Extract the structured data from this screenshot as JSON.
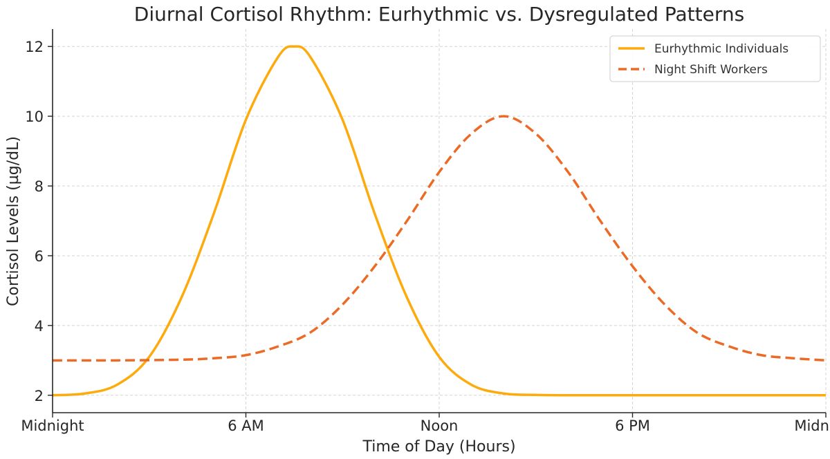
{
  "chart_data": {
    "type": "line",
    "title": "Diurnal Cortisol Rhythm: Eurhythmic vs. Dysregulated Patterns",
    "xlabel": "Time of Day (Hours)",
    "ylabel": "Cortisol Levels (µg/dL)",
    "xlim": [
      0,
      24
    ],
    "ylim": [
      1.5,
      12.5
    ],
    "x_ticks": [
      0,
      6,
      12,
      18,
      24
    ],
    "x_tick_labels": [
      "Midnight",
      "6 AM",
      "Noon",
      "6 PM",
      "Midnight"
    ],
    "y_ticks": [
      2,
      4,
      6,
      8,
      10,
      12
    ],
    "y_tick_labels": [
      "2",
      "4",
      "6",
      "8",
      "10",
      "12"
    ],
    "grid": true,
    "legend_position": "top-right",
    "series": [
      {
        "name": "Eurhythmic Individuals",
        "color": "#FDAA0C",
        "style": "solid",
        "x": [
          0,
          1,
          2,
          3,
          4,
          5,
          6,
          7,
          7.5,
          8,
          9,
          10,
          11,
          12,
          13,
          14,
          15,
          16,
          17,
          18,
          19,
          20,
          21,
          22,
          23,
          24
        ],
        "y": [
          2.0,
          2.05,
          2.3,
          3.1,
          4.8,
          7.2,
          9.9,
          11.7,
          12.0,
          11.7,
          9.9,
          7.2,
          4.8,
          3.1,
          2.3,
          2.05,
          2.01,
          2.0,
          2.0,
          2.0,
          2.0,
          2.0,
          2.0,
          2.0,
          2.0,
          2.0
        ]
      },
      {
        "name": "Night Shift Workers",
        "color": "#EB6B26",
        "style": "dashed",
        "x": [
          0,
          2,
          4,
          5,
          6,
          7,
          8,
          9,
          10,
          11,
          12,
          13,
          14,
          15,
          16,
          17,
          18,
          19,
          20,
          21,
          22,
          23,
          24
        ],
        "y": [
          3.0,
          3.0,
          3.02,
          3.06,
          3.15,
          3.4,
          3.8,
          4.6,
          5.7,
          7.0,
          8.4,
          9.5,
          10.0,
          9.5,
          8.4,
          7.0,
          5.7,
          4.6,
          3.8,
          3.4,
          3.15,
          3.06,
          3.0
        ]
      }
    ]
  }
}
